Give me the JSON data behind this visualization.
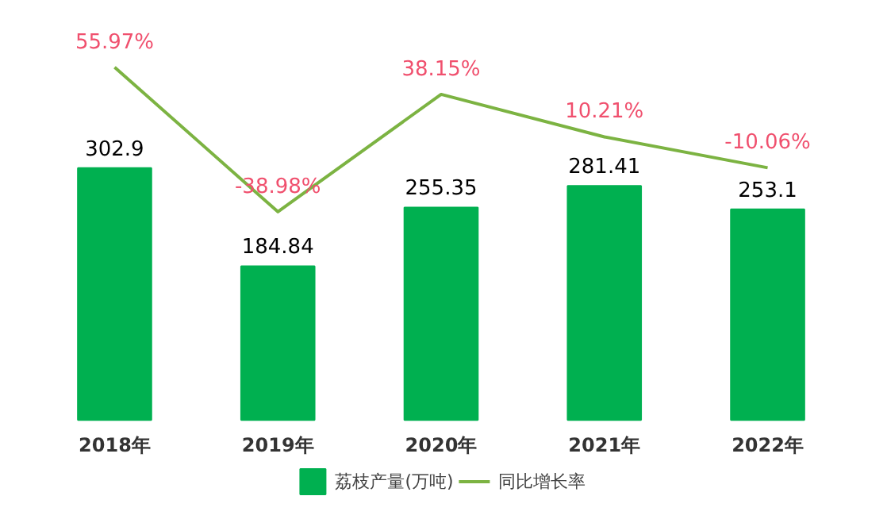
{
  "chart_data": {
    "type": "bar",
    "categories": [
      "2018年",
      "2019年",
      "2020年",
      "2021年",
      "2022年"
    ],
    "series": [
      {
        "name": "荔枝产量(万吨)",
        "color": "#00b050",
        "values": [
          302.9,
          184.84,
          255.35,
          281.41,
          253.1
        ],
        "value_labels": [
          "302.9",
          "184.84",
          "255.35",
          "281.41",
          "253.1"
        ]
      },
      {
        "name": "同比增长率",
        "type": "line",
        "axis": "y2",
        "color": "#7cb342",
        "values": [
          55.97,
          -38.98,
          38.15,
          10.21,
          -10.06
        ],
        "value_labels": [
          "55.97%",
          "-38.98%",
          "38.15%",
          "10.21%",
          "-10.06%"
        ]
      }
    ],
    "legend": "bottom",
    "tick_labels": "x"
  }
}
